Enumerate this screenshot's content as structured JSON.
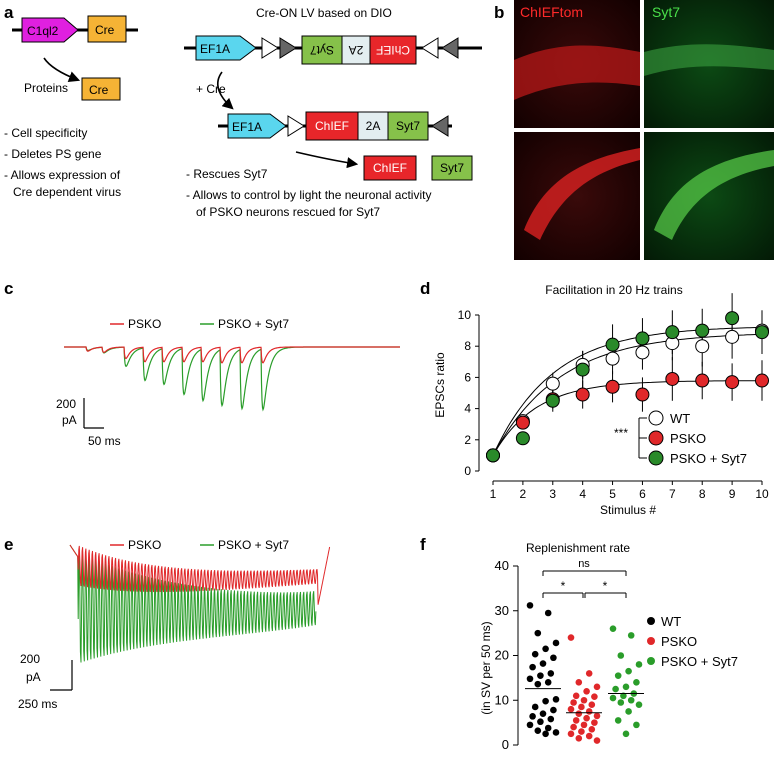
{
  "panels": {
    "a": "a",
    "b": "b",
    "c": "c",
    "d": "d",
    "e": "e",
    "f": "f"
  },
  "panel_a": {
    "c1ql2": "C1ql2",
    "cre": "Cre",
    "proteins": "Proteins",
    "cre_protein": "Cre",
    "bullets_left": [
      "- Cell specificity",
      "- Deletes PS gene",
      "- Allows expression of",
      "Cre dependent virus"
    ],
    "lv_title": "Cre-ON LV based on DIO",
    "ef1a": "EF1A",
    "syt7_inv": "Syt7",
    "twoA_inv": "2A",
    "chief_inv": "ChIEF",
    "plus_cre": "+ Cre",
    "ef1a_2": "EF1A",
    "chief": "ChIEF",
    "twoA": "2A",
    "syt7": "Syt7",
    "chief_protein": "ChIEF",
    "syt7_protein": "Syt7",
    "bullets_right": [
      "- Rescues Syt7",
      "- Allows to control by light the neuronal activity",
      "of PSKO neurons rescued for Syt7"
    ],
    "colors": {
      "c1ql2": "#e020e0",
      "cre": "#f5b335",
      "ef1a": "#5ad6ee",
      "syt7": "#86c14a",
      "twoA": "#e3eef0",
      "chief": "#e8262a"
    }
  },
  "panel_b": {
    "chieftom": "ChIEFtom",
    "syt7": "Syt7"
  },
  "panel_c": {
    "legend": [
      "PSKO",
      "PSKO + Syt7"
    ],
    "scale_y": [
      "200",
      "pA"
    ],
    "scale_x": "50 ms",
    "colors": {
      "psko": "#e0282a",
      "syt7": "#2a9d2a"
    }
  },
  "panel_e": {
    "legend": [
      "PSKO",
      "PSKO + Syt7"
    ],
    "scale_y": [
      "200",
      "pA"
    ],
    "scale_x": "250 ms"
  },
  "chart_data": [
    {
      "type": "line",
      "title": "Facilitation in 20 Hz trains",
      "xlabel": "Stimulus #",
      "ylabel": "EPSCs ratio",
      "xlim": [
        1,
        10
      ],
      "ylim": [
        0,
        10
      ],
      "xticks": [
        "1",
        "2",
        "3",
        "4",
        "5",
        "6",
        "7",
        "8",
        "9",
        "10"
      ],
      "yticks": [
        "0",
        "2",
        "4",
        "6",
        "8",
        "10"
      ],
      "x": [
        1,
        2,
        3,
        4,
        5,
        6,
        7,
        8,
        9,
        10
      ],
      "series": [
        {
          "name": "WT",
          "values": [
            1.0,
            3.2,
            5.6,
            6.8,
            7.2,
            7.6,
            8.2,
            8.0,
            8.6,
            9.0
          ],
          "err": [
            0.1,
            0.4,
            0.7,
            0.9,
            1.0,
            1.1,
            1.1,
            1.3,
            1.4,
            1.3
          ],
          "color": "#ffffff"
        },
        {
          "name": "PSKO",
          "values": [
            1.0,
            3.1,
            4.6,
            4.9,
            5.4,
            4.9,
            5.9,
            5.8,
            5.7,
            5.8
          ],
          "err": [
            0.1,
            0.4,
            0.6,
            0.9,
            1.0,
            1.1,
            1.4,
            1.2,
            1.2,
            1.3
          ],
          "color": "#e0282a"
        },
        {
          "name": "PSKO + Syt7",
          "values": [
            1.0,
            2.1,
            4.5,
            6.5,
            8.1,
            8.5,
            8.9,
            9.0,
            9.8,
            8.9
          ],
          "err": [
            0.1,
            0.3,
            0.7,
            1.2,
            1.3,
            1.3,
            1.4,
            1.4,
            1.6,
            1.4
          ],
          "color": "#2a8a2a"
        }
      ],
      "annotation": "***"
    },
    {
      "type": "scatter",
      "title": "Replenishment rate",
      "ylabel": "(in SV per 50 ms)",
      "ylim": [
        0,
        40
      ],
      "yticks": [
        "0",
        "10",
        "20",
        "30",
        "40"
      ],
      "significance": {
        "ns": "ns",
        "star1": "*",
        "star2": "*"
      },
      "series": [
        {
          "name": "WT",
          "color": "#000000",
          "mean": 12.6,
          "values": [
            31.2,
            29.5,
            25.0,
            22.8,
            21.5,
            20.3,
            19.5,
            18.2,
            17.4,
            16.0,
            15.5,
            14.8,
            14.0,
            13.6,
            10.2,
            9.8,
            8.5,
            7.8,
            7.0,
            6.4,
            5.8,
            5.2,
            4.5,
            3.8,
            3.2,
            2.8,
            2.5
          ]
        },
        {
          "name": "PSKO",
          "color": "#e0282a",
          "mean": 7.2,
          "values": [
            24.0,
            16.0,
            14.0,
            13.0,
            12.0,
            11.0,
            10.8,
            10.0,
            9.5,
            9.0,
            8.5,
            8.0,
            7.5,
            7.0,
            6.5,
            6.0,
            5.5,
            5.0,
            4.5,
            4.0,
            3.5,
            3.0,
            2.5,
            2.0,
            1.5,
            1.0
          ]
        },
        {
          "name": "PSKO + Syt7",
          "color": "#2a9d2a",
          "mean": 11.5,
          "values": [
            26.0,
            24.5,
            20.0,
            18.0,
            16.5,
            15.5,
            14.0,
            13.0,
            12.5,
            11.5,
            11.0,
            10.5,
            10.0,
            9.5,
            9.0,
            7.5,
            5.5,
            4.5,
            2.5
          ]
        }
      ]
    }
  ]
}
